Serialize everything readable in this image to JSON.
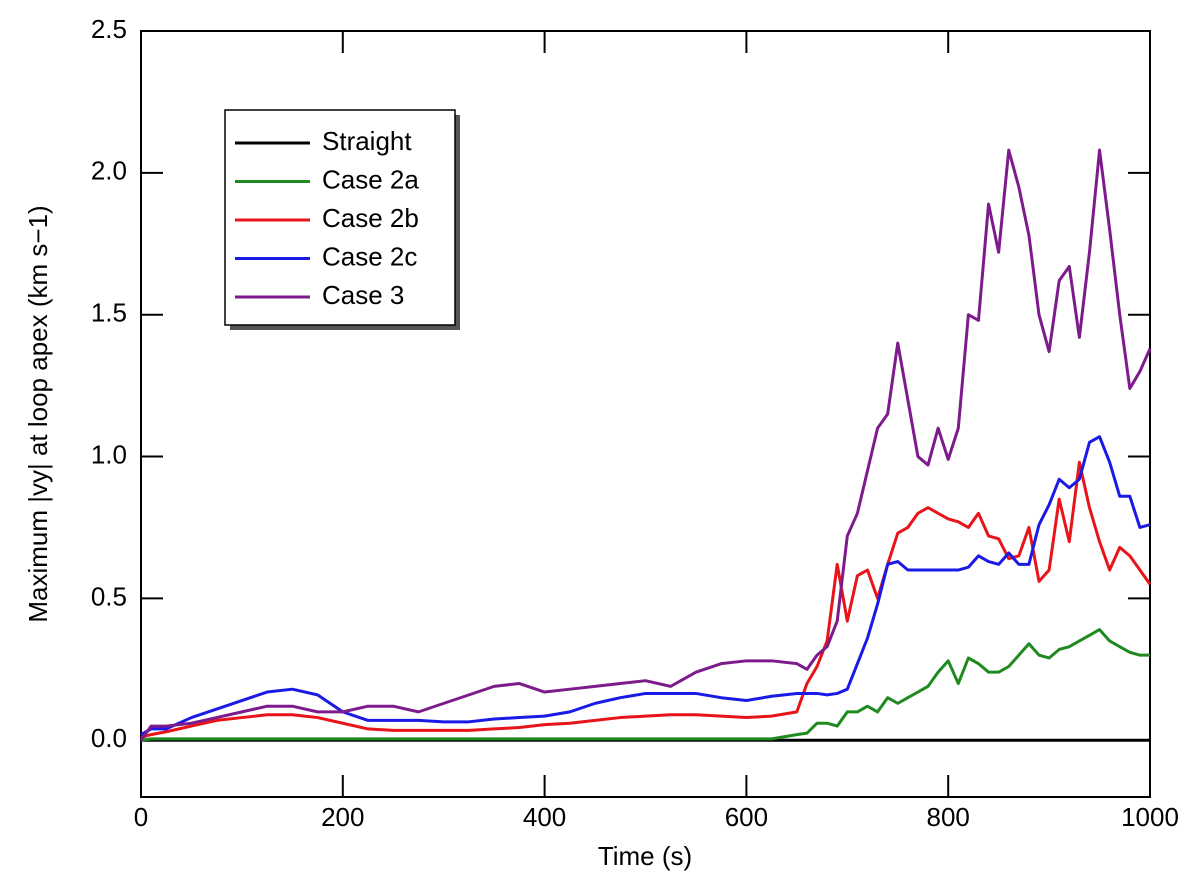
{
  "chart_data": {
    "type": "line",
    "xlabel": "Time (s)",
    "ylabel": "Maximum |vy| at loop apex (km s−1)",
    "xlim": [
      0,
      1000
    ],
    "ylim": [
      -0.2,
      2.5
    ],
    "xticks": [
      0,
      200,
      400,
      600,
      800,
      1000
    ],
    "yticks": [
      {
        "value": 0,
        "label": "0.0"
      },
      {
        "value": 0.5,
        "label": "0.5"
      },
      {
        "value": 1,
        "label": "1.0"
      },
      {
        "value": 1.5,
        "label": "1.5"
      },
      {
        "value": 2,
        "label": "2.0"
      },
      {
        "value": 2.5,
        "label": "2.5"
      }
    ],
    "legend": "upper left",
    "x": [
      0,
      10,
      25,
      50,
      75,
      100,
      125,
      150,
      175,
      200,
      225,
      250,
      275,
      300,
      325,
      350,
      375,
      400,
      425,
      450,
      475,
      500,
      525,
      550,
      575,
      600,
      625,
      650,
      660,
      670,
      680,
      690,
      700,
      710,
      720,
      730,
      740,
      750,
      760,
      770,
      780,
      790,
      800,
      810,
      820,
      830,
      840,
      850,
      860,
      870,
      880,
      890,
      900,
      910,
      920,
      930,
      940,
      950,
      960,
      970,
      980,
      990,
      1000
    ],
    "series": [
      {
        "name": "Straight",
        "color": "#000000",
        "values": [
          0,
          0,
          0,
          0,
          0,
          0,
          0,
          0,
          0,
          0,
          0,
          0,
          0,
          0,
          0,
          0,
          0,
          0,
          0,
          0,
          0,
          0,
          0,
          0,
          0,
          0,
          0,
          0,
          0,
          0,
          0,
          0,
          0,
          0,
          0,
          0,
          0,
          0,
          0,
          0,
          0,
          0,
          0,
          0,
          0,
          0,
          0,
          0,
          0,
          0,
          0,
          0,
          0,
          0,
          0,
          0,
          0,
          0,
          0,
          0,
          0,
          0,
          0
        ]
      },
      {
        "name": "Case 2a",
        "color": "#1f8a1f",
        "values": [
          0,
          0.005,
          0.005,
          0.005,
          0.005,
          0.005,
          0.005,
          0.005,
          0.005,
          0.005,
          0.005,
          0.005,
          0.005,
          0.005,
          0.005,
          0.005,
          0.005,
          0.005,
          0.005,
          0.005,
          0.005,
          0.005,
          0.005,
          0.005,
          0.005,
          0.005,
          0.005,
          0.02,
          0.025,
          0.06,
          0.06,
          0.05,
          0.1,
          0.1,
          0.12,
          0.1,
          0.15,
          0.13,
          0.15,
          0.17,
          0.19,
          0.24,
          0.28,
          0.2,
          0.29,
          0.27,
          0.24,
          0.24,
          0.26,
          0.3,
          0.34,
          0.3,
          0.29,
          0.32,
          0.33,
          0.35,
          0.37,
          0.39,
          0.35,
          0.33,
          0.31,
          0.3,
          0.3
        ]
      },
      {
        "name": "Case 2b",
        "color": "#e8141a",
        "values": [
          0.01,
          0.02,
          0.03,
          0.05,
          0.07,
          0.08,
          0.09,
          0.09,
          0.08,
          0.06,
          0.04,
          0.035,
          0.035,
          0.035,
          0.035,
          0.04,
          0.045,
          0.055,
          0.06,
          0.07,
          0.08,
          0.085,
          0.09,
          0.09,
          0.085,
          0.08,
          0.085,
          0.1,
          0.2,
          0.26,
          0.35,
          0.62,
          0.42,
          0.58,
          0.6,
          0.5,
          0.62,
          0.73,
          0.75,
          0.8,
          0.82,
          0.8,
          0.78,
          0.77,
          0.75,
          0.8,
          0.72,
          0.71,
          0.64,
          0.65,
          0.75,
          0.56,
          0.6,
          0.85,
          0.7,
          0.98,
          0.82,
          0.7,
          0.6,
          0.68,
          0.65,
          0.6,
          0.55
        ]
      },
      {
        "name": "Case 2c",
        "color": "#1a1ae6",
        "values": [
          0.02,
          0.04,
          0.04,
          0.08,
          0.11,
          0.14,
          0.17,
          0.18,
          0.16,
          0.1,
          0.07,
          0.07,
          0.07,
          0.065,
          0.065,
          0.075,
          0.08,
          0.085,
          0.1,
          0.13,
          0.15,
          0.165,
          0.165,
          0.165,
          0.15,
          0.14,
          0.155,
          0.165,
          0.165,
          0.165,
          0.16,
          0.165,
          0.18,
          0.27,
          0.36,
          0.48,
          0.62,
          0.63,
          0.6,
          0.6,
          0.6,
          0.6,
          0.6,
          0.6,
          0.61,
          0.65,
          0.63,
          0.62,
          0.66,
          0.62,
          0.62,
          0.76,
          0.83,
          0.92,
          0.89,
          0.92,
          1.05,
          1.07,
          0.98,
          0.86,
          0.86,
          0.75,
          0.76
        ]
      },
      {
        "name": "Case 3",
        "color": "#7e1b8c",
        "values": [
          0,
          0.05,
          0.05,
          0.06,
          0.08,
          0.1,
          0.12,
          0.12,
          0.1,
          0.1,
          0.12,
          0.12,
          0.1,
          0.13,
          0.16,
          0.19,
          0.2,
          0.17,
          0.18,
          0.19,
          0.2,
          0.21,
          0.19,
          0.24,
          0.27,
          0.28,
          0.28,
          0.27,
          0.25,
          0.3,
          0.33,
          0.42,
          0.72,
          0.8,
          0.95,
          1.1,
          1.15,
          1.4,
          1.2,
          1,
          0.97,
          1.1,
          0.99,
          1.1,
          1.5,
          1.48,
          1.89,
          1.72,
          2.08,
          1.95,
          1.78,
          1.5,
          1.37,
          1.62,
          1.67,
          1.42,
          1.72,
          2.08,
          1.8,
          1.5,
          1.24,
          1.3,
          1.38
        ]
      }
    ]
  }
}
